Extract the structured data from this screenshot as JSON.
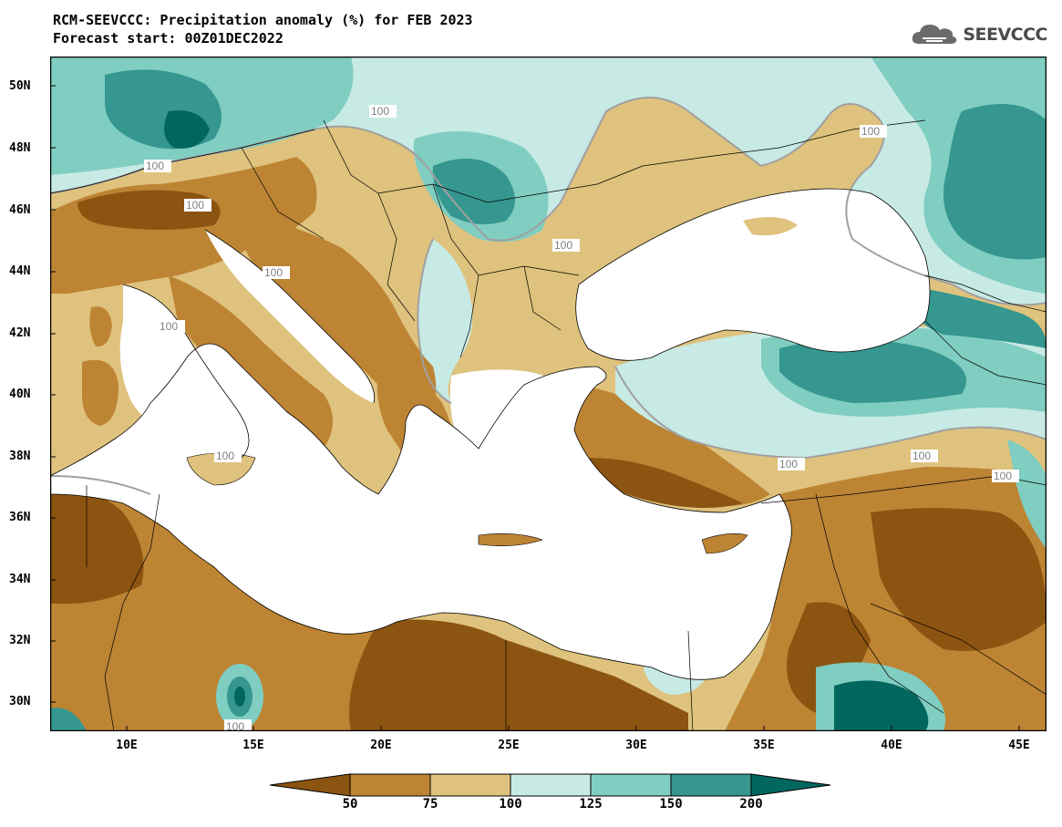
{
  "header": {
    "title_line1": "RCM-SEEVCCC: Precipitation anomaly (%) for FEB 2023",
    "title_line2": "Forecast start: 00Z01DEC2022",
    "logo_text": "SEEVCCC",
    "logo_icon": "cloud-logo-icon"
  },
  "map": {
    "lat_labels": [
      "50N",
      "48N",
      "46N",
      "44N",
      "42N",
      "40N",
      "38N",
      "36N",
      "34N",
      "32N",
      "30N"
    ],
    "lon_labels": [
      "10E",
      "15E",
      "20E",
      "25E",
      "30E",
      "35E",
      "40E",
      "45E"
    ],
    "contour_labels": [
      "100",
      "100",
      "100",
      "100",
      "100",
      "100",
      "100",
      "100",
      "100",
      "100",
      "100",
      "100"
    ],
    "colors": {
      "below_50": "#8c5411",
      "50_75": "#bd8434",
      "75_100": "#dfc27d",
      "100_125": "#c7eae5",
      "125_150": "#80cdc1",
      "150_200": "#35978f",
      "above_200": "#01665e",
      "sea": "#ffffff",
      "contour_100": "#a0a0a0"
    }
  },
  "colorbar": {
    "ticks": [
      "50",
      "75",
      "100",
      "125",
      "150",
      "200"
    ],
    "colors": [
      "#8c5411",
      "#bd8434",
      "#dfc27d",
      "#c7eae5",
      "#80cdc1",
      "#35978f",
      "#01665e"
    ]
  }
}
